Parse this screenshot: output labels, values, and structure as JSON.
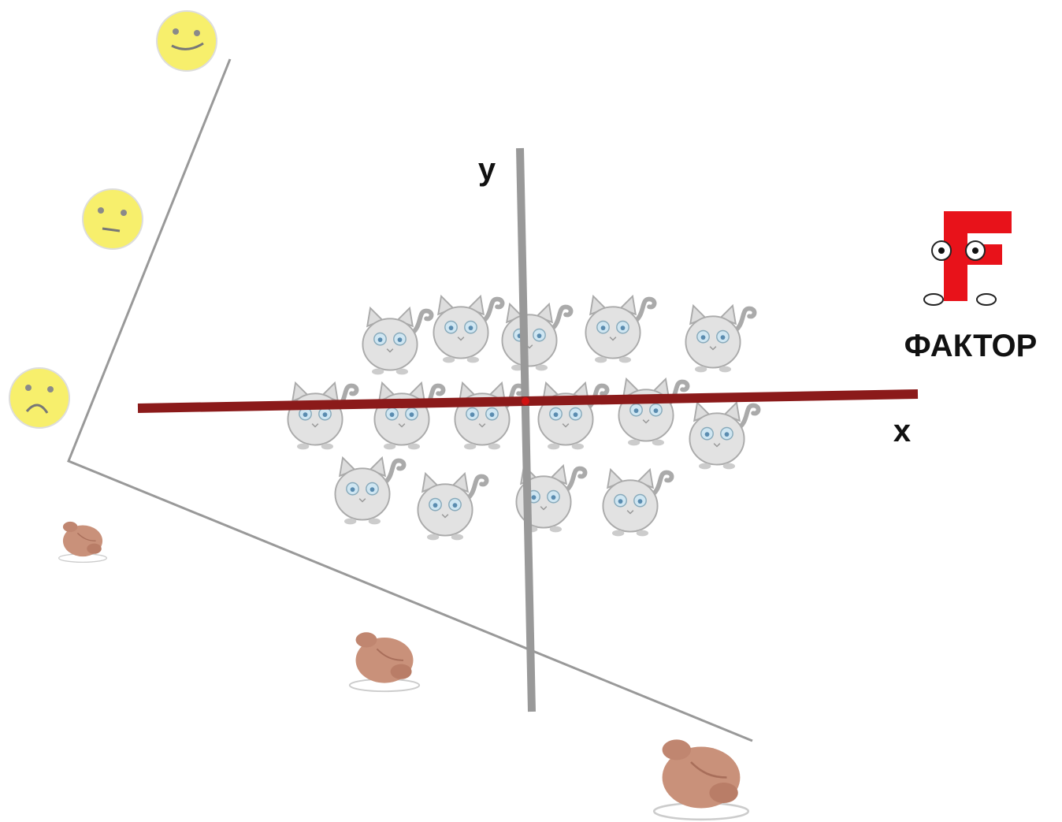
{
  "axes": {
    "y": "y",
    "x": "x"
  },
  "logo": {
    "text": "ФАКТОР"
  }
}
